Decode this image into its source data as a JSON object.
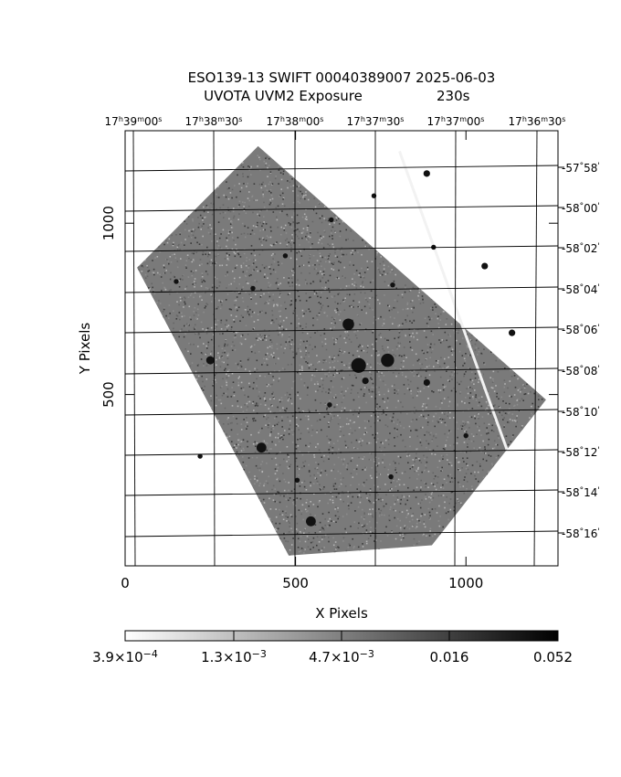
{
  "title": {
    "line1": "ESO139-13 SWIFT 00040389007 2025-06-03",
    "line2_left": "UVOTA UVM2 Exposure",
    "line2_right": "230s"
  },
  "ra_labels": [
    {
      "h": "17",
      "m": "39",
      "s": "00"
    },
    {
      "h": "17",
      "m": "38",
      "s": "30"
    },
    {
      "h": "17",
      "m": "38",
      "s": "00"
    },
    {
      "h": "17",
      "m": "37",
      "s": "30"
    },
    {
      "h": "17",
      "m": "37",
      "s": "00"
    },
    {
      "h": "17",
      "m": "36",
      "s": "30"
    }
  ],
  "ra_unit_symbols": {
    "h": "h",
    "m": "m",
    "s": "s"
  },
  "dec_labels": [
    {
      "deg": "-57",
      "min": "58"
    },
    {
      "deg": "-58",
      "min": "00"
    },
    {
      "deg": "-58",
      "min": "02"
    },
    {
      "deg": "-58",
      "min": "04"
    },
    {
      "deg": "-58",
      "min": "06"
    },
    {
      "deg": "-58",
      "min": "08"
    },
    {
      "deg": "-58",
      "min": "10"
    },
    {
      "deg": "-58",
      "min": "12"
    },
    {
      "deg": "-58",
      "min": "14"
    },
    {
      "deg": "-58",
      "min": "16"
    }
  ],
  "dec_unit_symbols": {
    "deg": "°",
    "min": "'"
  },
  "axes": {
    "x": {
      "label": "X Pixels",
      "range": [
        0,
        1270
      ],
      "ticks": [
        {
          "v": 0,
          "label": "0"
        },
        {
          "v": 500,
          "label": "500"
        },
        {
          "v": 1000,
          "label": "1000"
        }
      ]
    },
    "y": {
      "label": "Y Pixels",
      "range": [
        0,
        1270
      ],
      "ticks": [
        {
          "v": 500,
          "label": "500"
        },
        {
          "v": 1000,
          "label": "1000"
        }
      ]
    }
  },
  "colorbar": {
    "scale": "log",
    "colors": [
      "#ffffff",
      "#000000"
    ],
    "tick_labels": [
      {
        "mant": "3.9×10",
        "exp": "−4",
        "value": 0.00039
      },
      {
        "mant": "1.3×10",
        "exp": "−3",
        "value": 0.0013
      },
      {
        "mant": "4.7×10",
        "exp": "−3",
        "value": 0.0047
      },
      {
        "mant": "",
        "exp": "",
        "text": "0.016",
        "value": 0.016
      },
      {
        "mant": "",
        "exp": "",
        "text": "0.052",
        "value": 0.052
      }
    ]
  },
  "image": {
    "footprint_pixels": [
      [
        35,
        870
      ],
      [
        390,
        1225
      ],
      [
        1235,
        485
      ],
      [
        900,
        60
      ],
      [
        480,
        30
      ]
    ],
    "noise_colors": [
      "#3a3a3a",
      "#666666",
      "#8c8c8c",
      "#b4b4b4"
    ],
    "sources": [
      {
        "x": 685,
        "y": 585,
        "r": 9
      },
      {
        "x": 770,
        "y": 600,
        "r": 8
      },
      {
        "x": 655,
        "y": 705,
        "r": 7
      },
      {
        "x": 400,
        "y": 345,
        "r": 6
      },
      {
        "x": 545,
        "y": 130,
        "r": 6
      },
      {
        "x": 250,
        "y": 600,
        "r": 5
      },
      {
        "x": 705,
        "y": 540,
        "r": 4
      },
      {
        "x": 885,
        "y": 535,
        "r": 4
      },
      {
        "x": 1135,
        "y": 680,
        "r": 4
      },
      {
        "x": 1055,
        "y": 875,
        "r": 4
      },
      {
        "x": 885,
        "y": 1145,
        "r": 4
      },
      {
        "x": 785,
        "y": 820,
        "r": 3
      },
      {
        "x": 905,
        "y": 930,
        "r": 3
      },
      {
        "x": 600,
        "y": 470,
        "r": 3
      },
      {
        "x": 375,
        "y": 810,
        "r": 3
      },
      {
        "x": 730,
        "y": 1080,
        "r": 3
      },
      {
        "x": 220,
        "y": 320,
        "r": 3
      },
      {
        "x": 150,
        "y": 830,
        "r": 3
      },
      {
        "x": 1000,
        "y": 380,
        "r": 3
      },
      {
        "x": 605,
        "y": 1010,
        "r": 3
      },
      {
        "x": 505,
        "y": 250,
        "r": 3
      },
      {
        "x": 470,
        "y": 905,
        "r": 3
      },
      {
        "x": 780,
        "y": 260,
        "r": 3
      }
    ],
    "streak": {
      "from": [
        805,
        1210
      ],
      "to": [
        1120,
        340
      ]
    }
  }
}
